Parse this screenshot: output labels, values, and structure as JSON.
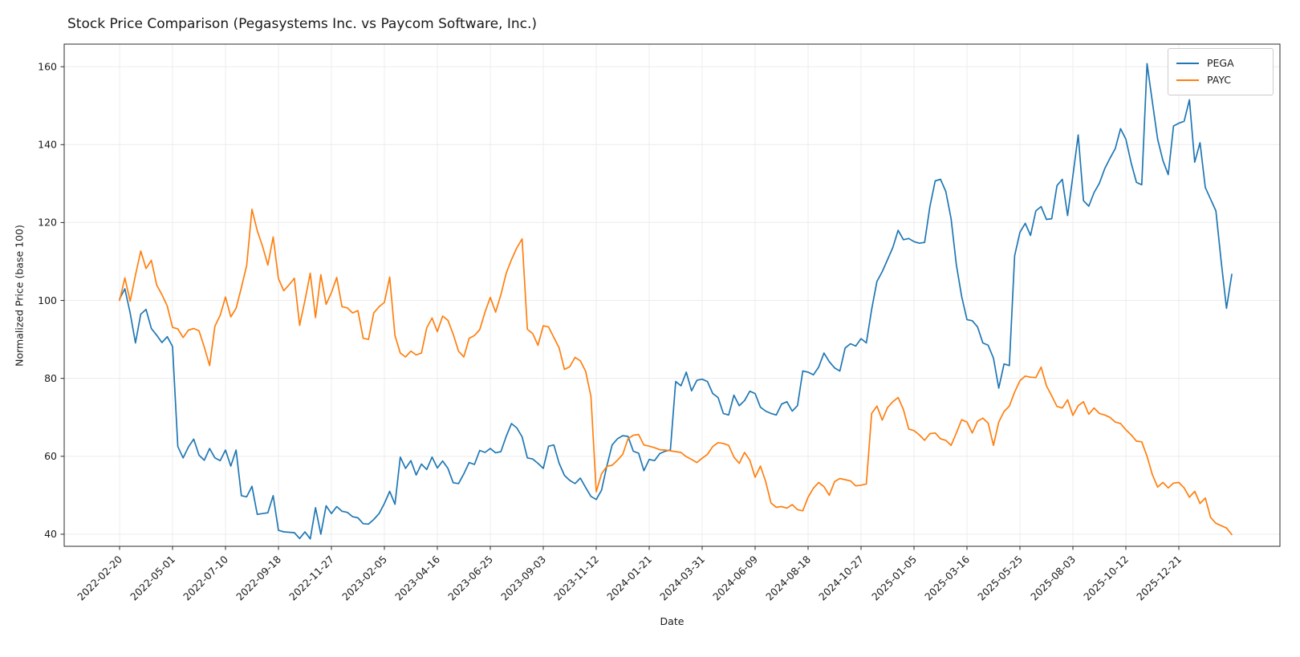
{
  "figure": {
    "background_color": "#ffffff",
    "text_color": "#1a1a1a",
    "grid_color": "#ececec",
    "spine_color": "#2b2b2b"
  },
  "chart_data": {
    "type": "line",
    "title": "Stock Price Comparison (Pegasystems Inc. vs Paycom Software, Inc.)",
    "xlabel": "Date",
    "ylabel": "Normalized Price (base 100)",
    "grid": true,
    "legend_position": "upper right",
    "frequency": "weekly",
    "x_start_label": "2022-02-20",
    "points_per_tick": 10,
    "x_tick_labels": [
      "2022-02-20",
      "2022-05-01",
      "2022-07-10",
      "2022-09-18",
      "2022-11-27",
      "2023-02-05",
      "2023-04-16",
      "2023-06-25",
      "2023-09-03",
      "2023-11-12",
      "2024-01-21",
      "2024-03-31",
      "2024-06-09",
      "2024-08-18",
      "2024-10-27",
      "2025-01-05",
      "2025-03-16",
      "2025-05-25",
      "2025-08-03",
      "2025-10-12",
      "2025-12-21"
    ],
    "y_ticks": [
      40,
      60,
      80,
      100,
      120,
      140,
      160
    ],
    "ylim": [
      36.9,
      165.8
    ],
    "series": [
      {
        "name": "PEGA",
        "color": "#1f77b4",
        "values": [
          100.4,
          103,
          96.8,
          89.1,
          96.5,
          97.7,
          92.8,
          91.1,
          89.2,
          90.7,
          88.2,
          62.5,
          59.6,
          62.4,
          64.4,
          60.3,
          59,
          62,
          59.6,
          58.9,
          61.6,
          57.5,
          61.6,
          49.9,
          49.6,
          52.3,
          45.1,
          45.3,
          45.5,
          49.9,
          41,
          40.6,
          40.5,
          40.4,
          38.9,
          40.6,
          38.8,
          46.8,
          40,
          47.3,
          45.3,
          47.1,
          45.9,
          45.6,
          44.5,
          44.2,
          42.7,
          42.6,
          43.8,
          45.3,
          47.9,
          51,
          47.7,
          59.8,
          56.9,
          58.9,
          55.2,
          58,
          56.6,
          59.8,
          57,
          58.8,
          56.9,
          53.2,
          53,
          55.5,
          58.4,
          57.9,
          61.5,
          61,
          62,
          60.9,
          61.2,
          65.1,
          68.4,
          67.3,
          65,
          59.6,
          59.3,
          58.2,
          56.9,
          62.6,
          62.9,
          58.2,
          55.1,
          53.8,
          53,
          54.4,
          52,
          49.7,
          48.9,
          51.3,
          57.5,
          62.9,
          64.5,
          65.3,
          65.1,
          61.3,
          60.8,
          56.3,
          59.2,
          58.9,
          60.7,
          61.3,
          61.6,
          79.2,
          78.1,
          81.6,
          76.8,
          79.5,
          79.8,
          79.2,
          76.1,
          75.1,
          71,
          70.6,
          75.7,
          73,
          74.3,
          76.7,
          76.1,
          72.6,
          71.6,
          71,
          70.6,
          73.4,
          74,
          71.6,
          73,
          81.9,
          81.6,
          80.9,
          82.9,
          86.5,
          84.3,
          82.7,
          81.9,
          87.8,
          88.9,
          88.3,
          90.2,
          89.1,
          97.7,
          104.9,
          107.4,
          110.5,
          113.6,
          118,
          115.6,
          115.9,
          115.1,
          114.7,
          114.9,
          124.1,
          130.7,
          131.1,
          128,
          121,
          109.1,
          101,
          95.1,
          94.8,
          93.2,
          89.1,
          88.5,
          85.2,
          77.5,
          83.7,
          83.3,
          111.5,
          117.5,
          119.8,
          116.7,
          123,
          124.1,
          120.8,
          121,
          129.5,
          131.1,
          121.8,
          132,
          142.5,
          125.6,
          124.2,
          127.7,
          130.1,
          133.8,
          136.5,
          139,
          144.1,
          141.4,
          135.3,
          130.3,
          129.7,
          160.8,
          151,
          141.4,
          135.9,
          132.3,
          144.8,
          145.5,
          146,
          151.5,
          135.5,
          140.5,
          129,
          126,
          123,
          110,
          98,
          106.7
        ]
      },
      {
        "name": "PAYC",
        "color": "#ff7f0e",
        "values": [
          100,
          105.8,
          99.8,
          106.5,
          112.7,
          108.2,
          110.3,
          104,
          101.5,
          98.6,
          93.1,
          92.7,
          90.5,
          92.4,
          92.8,
          92.2,
          88,
          83.3,
          93.4,
          96.2,
          100.9,
          95.8,
          98,
          103.3,
          109,
          123.4,
          117.9,
          113.9,
          109.1,
          116.3,
          105.6,
          102.5,
          104,
          105.7,
          93.6,
          100,
          107,
          95.6,
          106.6,
          99,
          102,
          105.9,
          98.4,
          98.1,
          96.8,
          97.4,
          90.3,
          90,
          96.8,
          98.4,
          99.5,
          106,
          91,
          86.5,
          85.5,
          87,
          86,
          86.5,
          93,
          95.5,
          92,
          96,
          94.9,
          91.3,
          87,
          85.5,
          90.3,
          91,
          92.5,
          97,
          100.8,
          97,
          101.5,
          107,
          110.5,
          113.5,
          115.8,
          92.6,
          91.5,
          88.5,
          93.5,
          93.2,
          90.5,
          87.8,
          82.3,
          83,
          85.4,
          84.5,
          81.8,
          75.4,
          50.9,
          55.5,
          57.4,
          57.7,
          59,
          60.5,
          64.5,
          65.4,
          65.6,
          62.9,
          62.6,
          62.2,
          61.7,
          61.6,
          61.4,
          61.2,
          61,
          59.9,
          59.2,
          58.4,
          59.5,
          60.5,
          62.5,
          63.5,
          63.3,
          62.8,
          59.8,
          58.2,
          61,
          59,
          54.6,
          57.5,
          53.5,
          48,
          46.9,
          47.1,
          46.7,
          47.6,
          46.3,
          46,
          49.5,
          51.8,
          53.3,
          52.2,
          50,
          53.5,
          54.3,
          54,
          53.7,
          52.4,
          52.6,
          52.9,
          71,
          72.9,
          69.3,
          72.5,
          74,
          75.1,
          72,
          67,
          66.6,
          65.5,
          64.1,
          65.8,
          66,
          64.5,
          64.1,
          62.8,
          66,
          69.4,
          68.8,
          66,
          69,
          69.8,
          68.5,
          62.8,
          68.8,
          71.5,
          72.9,
          76.5,
          79.4,
          80.6,
          80.3,
          80.2,
          82.9,
          78.1,
          75.5,
          72.8,
          72.4,
          74.5,
          70.5,
          73,
          74,
          70.8,
          72.4,
          71,
          70.6,
          70,
          68.8,
          68.4,
          66.8,
          65.5,
          63.9,
          63.7,
          60,
          55.3,
          52.1,
          53.3,
          51.9,
          53.1,
          53.3,
          51.9,
          49.5,
          51,
          47.9,
          49.3,
          44.3,
          42.8,
          42.2,
          41.6,
          39.9
        ]
      }
    ]
  }
}
